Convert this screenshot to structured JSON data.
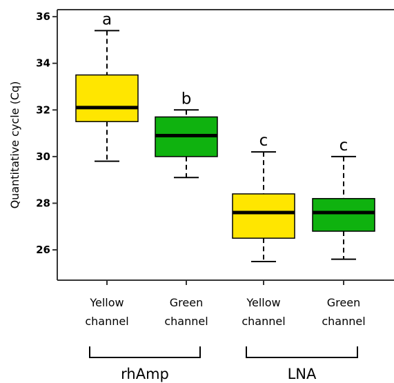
{
  "chart_data": {
    "type": "box",
    "ylabel": "Quantitative cycle (Cq)",
    "ylim": [
      24.7,
      36.3
    ],
    "yticks": [
      26,
      28,
      30,
      32,
      34,
      36
    ],
    "grid": false,
    "categories": [
      [
        "Yellow",
        "channel"
      ],
      [
        "Green",
        "channel"
      ],
      [
        "Yellow",
        "channel"
      ],
      [
        "Green",
        "channel"
      ]
    ],
    "groups": [
      {
        "label": "rhAmp",
        "members": [
          0,
          1
        ]
      },
      {
        "label": "LNA",
        "members": [
          2,
          3
        ]
      }
    ],
    "boxes": [
      {
        "min": 29.8,
        "q1": 31.5,
        "median": 32.1,
        "q3": 33.5,
        "max": 35.4,
        "color": "#ffe600",
        "letter": "a"
      },
      {
        "min": 29.1,
        "q1": 30.0,
        "median": 30.9,
        "q3": 31.7,
        "max": 32.0,
        "color": "#0fb20f",
        "letter": "b"
      },
      {
        "min": 25.5,
        "q1": 26.5,
        "median": 27.6,
        "q3": 28.4,
        "max": 30.2,
        "color": "#ffe600",
        "letter": "c"
      },
      {
        "min": 25.6,
        "q1": 26.8,
        "median": 27.6,
        "q3": 28.2,
        "max": 30.0,
        "color": "#0fb20f",
        "letter": "c"
      }
    ]
  }
}
